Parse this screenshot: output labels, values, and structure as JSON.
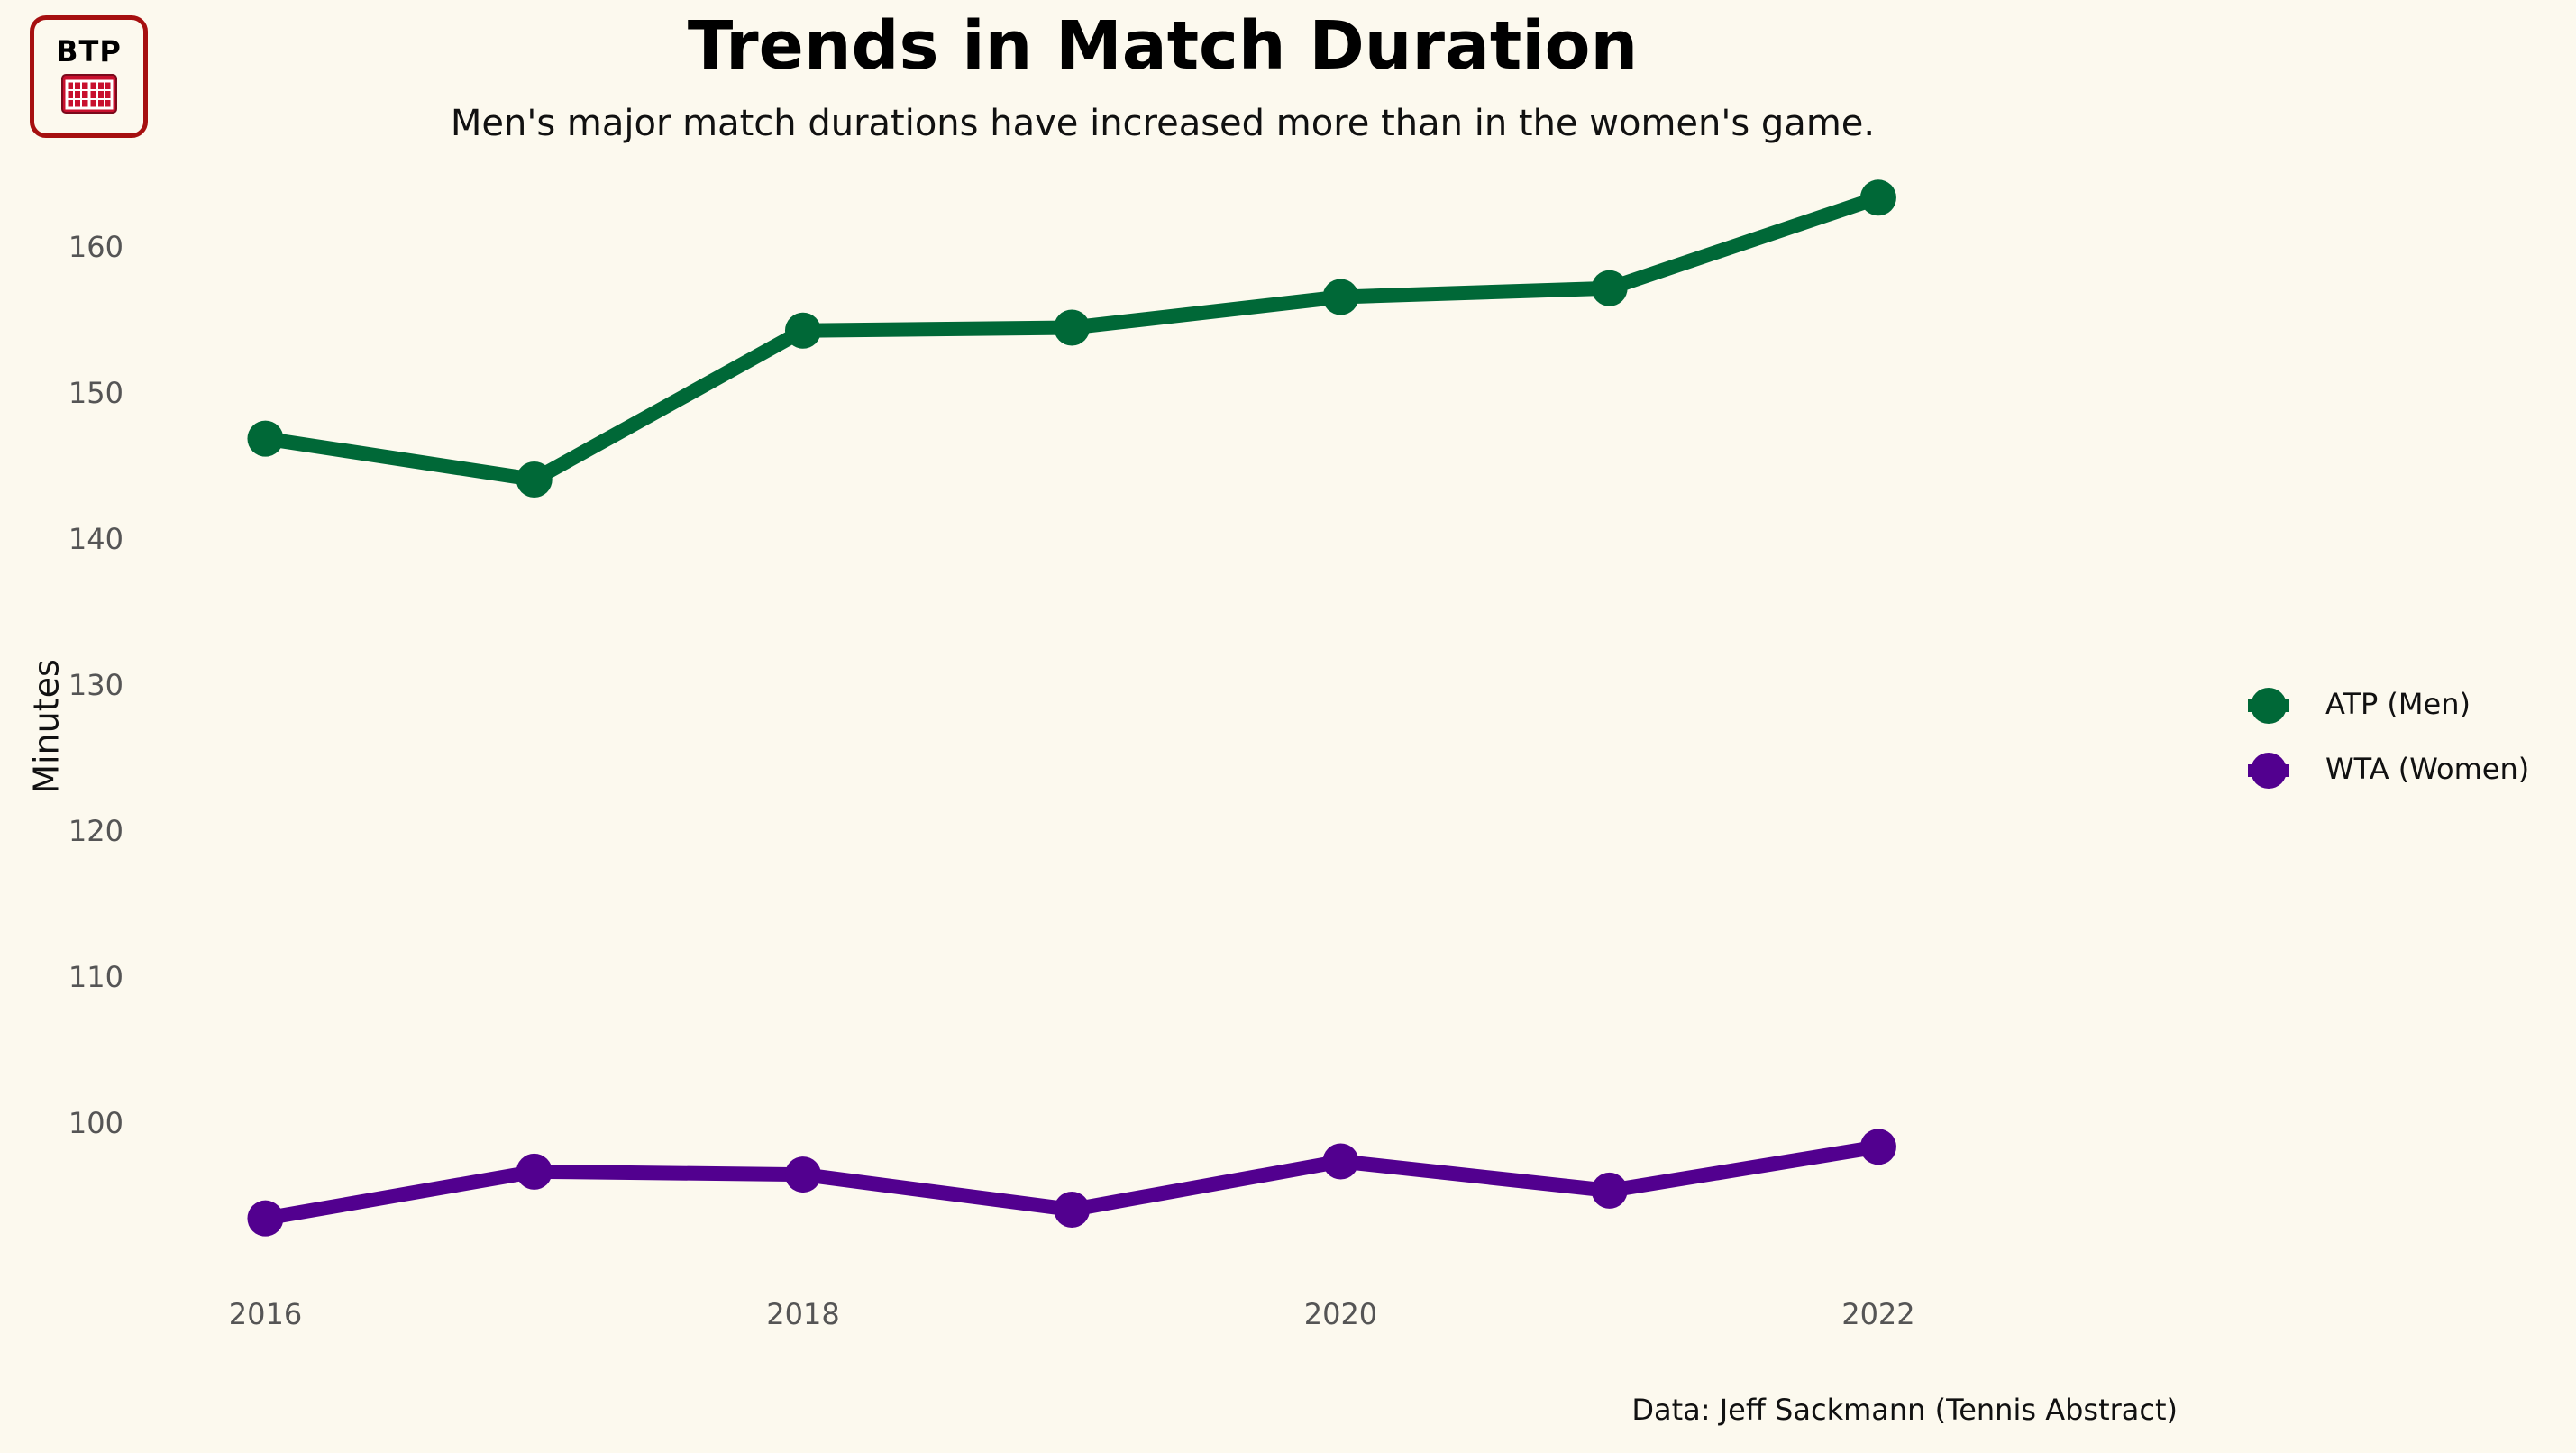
{
  "logo": {
    "text": "BTP",
    "icon": "tennis-court-icon"
  },
  "colors": {
    "background": "#fcf9ee",
    "atp": "#006837",
    "wta": "#52008f",
    "logo_border": "#a61010"
  },
  "chart_data": {
    "type": "line",
    "title": "Trends in Match Duration",
    "subtitle": "Men's major match durations have increased more than in the women's game.",
    "xlabel": "",
    "ylabel": "Minutes",
    "caption": "Data: Jeff Sackmann (Tennis Abstract)",
    "x": [
      2016,
      2017,
      2018,
      2019,
      2020,
      2021,
      2022
    ],
    "x_ticks": [
      "2016",
      "2018",
      "2020",
      "2022"
    ],
    "y_ticks": [
      "100",
      "110",
      "120",
      "130",
      "140",
      "150",
      "160"
    ],
    "xlim": [
      2015.7,
      2023.1
    ],
    "ylim": [
      90,
      165
    ],
    "legend_position": "right",
    "grid": false,
    "series": [
      {
        "name": "ATP (Men)",
        "color": "#006837",
        "values": [
          147.0,
          144.2,
          154.4,
          154.6,
          156.7,
          157.3,
          163.5
        ]
      },
      {
        "name": "WTA (Women)",
        "color": "#52008f",
        "values": [
          93.6,
          96.8,
          96.6,
          94.2,
          97.5,
          95.5,
          98.5
        ]
      }
    ]
  }
}
